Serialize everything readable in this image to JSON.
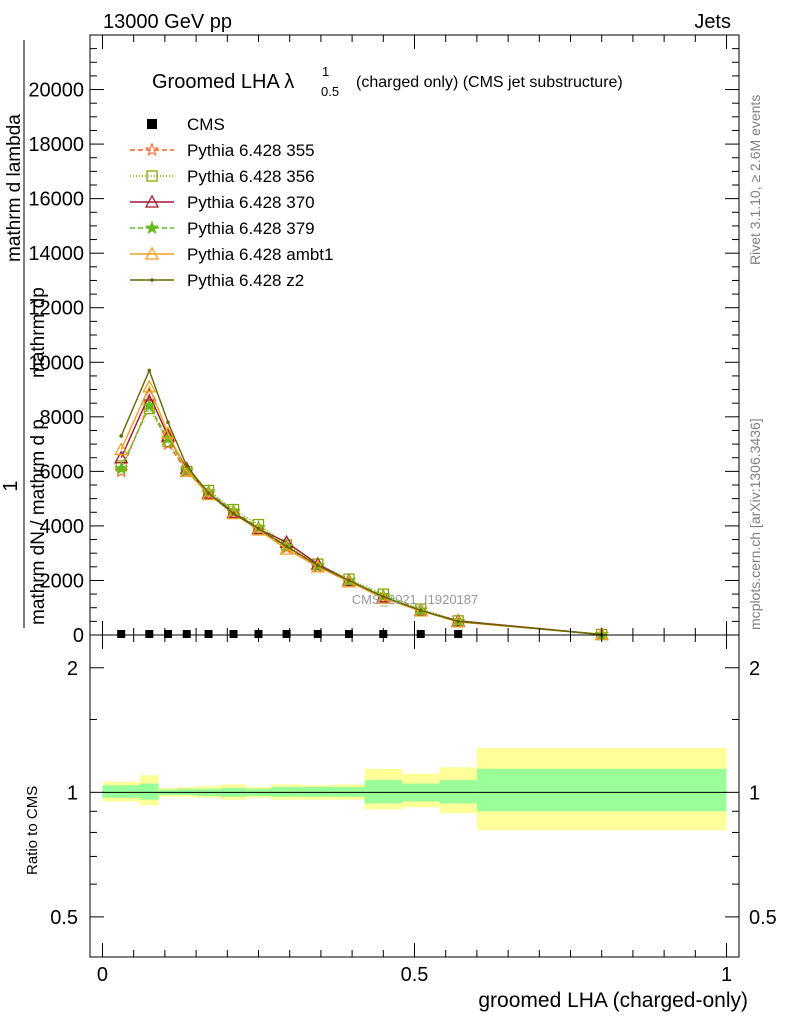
{
  "header": {
    "energy_label": "13000 GeV pp",
    "process_label": "Jets"
  },
  "side_labels": {
    "rivet": "Rivet 3.1.10, ≥ 2.6M events",
    "mcplots": "mcplots.cern.ch [arXiv:1306.3436]"
  },
  "colors": {
    "band_inner": "#99ff99",
    "band_outer": "#ffff99",
    "data": "#000000"
  },
  "chart_data": [
    {
      "type": "line",
      "title_main": "Groomed LHA ",
      "title_lambda": "λ",
      "title_sup": "1",
      "title_sub": "0.5",
      "title_rest": "(charged only) (CMS jet substructure)",
      "ylabel_parts": [
        "1",
        "mathrm dN / mathrm d p",
        "T",
        "mathrm d",
        "N",
        "mathrm dp",
        "mathrm d",
        "T",
        "mathrm d lambda"
      ],
      "ylabel_lines": [
        "1",
        "mathrm dN / mathrm d mathrm dp_T mathrm d lambda"
      ],
      "watermark": "CMS_2021_I1920187",
      "xlim": [
        -0.02,
        1.02
      ],
      "ylim": [
        0,
        22000
      ],
      "y_ticks": [
        0,
        2000,
        4000,
        6000,
        8000,
        10000,
        12000,
        14000,
        16000,
        18000,
        20000
      ],
      "y_tick_labels": [
        "0",
        "2000",
        "4000",
        "6000",
        "8000",
        "10000",
        "12000",
        "14000",
        "16000",
        "18000",
        "20000"
      ],
      "legend": "top-left",
      "data_series": {
        "name": "CMS",
        "x": [
          0.03,
          0.075,
          0.105,
          0.135,
          0.17,
          0.21,
          0.25,
          0.295,
          0.345,
          0.395,
          0.45,
          0.51,
          0.57
        ],
        "values": [
          0,
          0,
          0,
          0,
          0,
          0,
          0,
          0,
          0,
          0,
          0,
          0,
          0
        ]
      },
      "series": [
        {
          "name": "Pythia 6.428 355",
          "color": "#ff6622",
          "marker": "star",
          "dash": "5,3",
          "x": [
            0.03,
            0.075,
            0.105,
            0.135,
            0.17,
            0.21,
            0.25,
            0.295,
            0.345,
            0.395,
            0.45,
            0.51,
            0.57,
            0.8
          ],
          "values": [
            6000,
            8500,
            7000,
            6000,
            5200,
            4500,
            3900,
            3200,
            2500,
            2000,
            1400,
            900,
            500,
            20
          ]
        },
        {
          "name": "Pythia 6.428 356",
          "color": "#8aa600",
          "marker": "square",
          "dash": "1,2",
          "x": [
            0.03,
            0.075,
            0.105,
            0.135,
            0.17,
            0.21,
            0.25,
            0.295,
            0.345,
            0.395,
            0.45,
            0.51,
            0.57,
            0.8
          ],
          "values": [
            6200,
            8300,
            7100,
            6000,
            5300,
            4600,
            4050,
            3300,
            2600,
            2050,
            1500,
            950,
            520,
            20
          ]
        },
        {
          "name": "Pythia 6.428 370",
          "color": "#a01830",
          "marker": "triangle",
          "dash": "",
          "x": [
            0.03,
            0.075,
            0.105,
            0.135,
            0.17,
            0.21,
            0.25,
            0.295,
            0.345,
            0.395,
            0.45,
            0.51,
            0.57,
            0.8
          ],
          "values": [
            6500,
            8800,
            7300,
            6100,
            5200,
            4500,
            3900,
            3400,
            2600,
            2000,
            1400,
            900,
            520,
            20
          ]
        },
        {
          "name": "Pythia 6.428 379",
          "color": "#66bb22",
          "marker": "star",
          "dash": "5,3",
          "x": [
            0.03,
            0.075,
            0.105,
            0.135,
            0.17,
            0.21,
            0.25,
            0.295,
            0.345,
            0.395,
            0.45,
            0.51,
            0.57,
            0.8
          ],
          "values": [
            6100,
            8400,
            7200,
            6050,
            5250,
            4550,
            3950,
            3250,
            2550,
            2000,
            1450,
            920,
            500,
            20
          ]
        },
        {
          "name": "Pythia 6.428 ambt1",
          "color": "#f0a020",
          "marker": "triangle",
          "dash": "",
          "x": [
            0.03,
            0.075,
            0.105,
            0.135,
            0.17,
            0.21,
            0.25,
            0.295,
            0.345,
            0.395,
            0.45,
            0.51,
            0.57,
            0.8
          ],
          "values": [
            6800,
            9100,
            7400,
            6000,
            5150,
            4450,
            3850,
            3150,
            2500,
            1950,
            1350,
            880,
            480,
            20
          ]
        },
        {
          "name": "Pythia 6.428 z2",
          "color": "#666600",
          "marker": "dot",
          "dash": "",
          "x": [
            0.03,
            0.075,
            0.105,
            0.135,
            0.17,
            0.21,
            0.25,
            0.295,
            0.345,
            0.395,
            0.45,
            0.51,
            0.57,
            0.8
          ],
          "values": [
            7300,
            9700,
            7800,
            6200,
            5200,
            4450,
            3900,
            3250,
            2550,
            2000,
            1400,
            900,
            500,
            20
          ]
        }
      ]
    },
    {
      "type": "area",
      "ylabel": "Ratio to CMS",
      "xlabel": "groomed LHA (charged-only)",
      "xlim": [
        -0.02,
        1.02
      ],
      "ylim": [
        0.4,
        2.4
      ],
      "y_log": true,
      "x_ticks": [
        0,
        0.5,
        1
      ],
      "x_tick_labels": [
        "0",
        "0.5",
        "1"
      ],
      "y_ticks": [
        0.5,
        1,
        2
      ],
      "y_tick_labels": [
        "0.5",
        "1",
        "2"
      ],
      "bins": [
        {
          "lo": 0.0,
          "hi": 0.06,
          "inner": [
            0.97,
            1.04
          ],
          "outer": [
            0.95,
            1.06
          ]
        },
        {
          "lo": 0.06,
          "hi": 0.09,
          "inner": [
            0.96,
            1.05
          ],
          "outer": [
            0.93,
            1.1
          ]
        },
        {
          "lo": 0.09,
          "hi": 0.12,
          "inner": [
            0.985,
            1.015
          ],
          "outer": [
            0.975,
            1.025
          ]
        },
        {
          "lo": 0.12,
          "hi": 0.15,
          "inner": [
            0.985,
            1.02
          ],
          "outer": [
            0.975,
            1.03
          ]
        },
        {
          "lo": 0.15,
          "hi": 0.19,
          "inner": [
            0.98,
            1.02
          ],
          "outer": [
            0.97,
            1.035
          ]
        },
        {
          "lo": 0.19,
          "hi": 0.23,
          "inner": [
            0.975,
            1.025
          ],
          "outer": [
            0.96,
            1.045
          ]
        },
        {
          "lo": 0.23,
          "hi": 0.27,
          "inner": [
            0.98,
            1.02
          ],
          "outer": [
            0.97,
            1.03
          ]
        },
        {
          "lo": 0.27,
          "hi": 0.32,
          "inner": [
            0.975,
            1.03
          ],
          "outer": [
            0.96,
            1.045
          ]
        },
        {
          "lo": 0.32,
          "hi": 0.37,
          "inner": [
            0.975,
            1.03
          ],
          "outer": [
            0.96,
            1.04
          ]
        },
        {
          "lo": 0.37,
          "hi": 0.42,
          "inner": [
            0.975,
            1.03
          ],
          "outer": [
            0.96,
            1.045
          ]
        },
        {
          "lo": 0.42,
          "hi": 0.48,
          "inner": [
            0.94,
            1.07
          ],
          "outer": [
            0.91,
            1.14
          ]
        },
        {
          "lo": 0.48,
          "hi": 0.54,
          "inner": [
            0.95,
            1.05
          ],
          "outer": [
            0.92,
            1.11
          ]
        },
        {
          "lo": 0.54,
          "hi": 0.6,
          "inner": [
            0.94,
            1.07
          ],
          "outer": [
            0.89,
            1.15
          ]
        },
        {
          "lo": 0.6,
          "hi": 1.0,
          "inner": [
            0.9,
            1.14
          ],
          "outer": [
            0.81,
            1.28
          ]
        }
      ]
    }
  ]
}
